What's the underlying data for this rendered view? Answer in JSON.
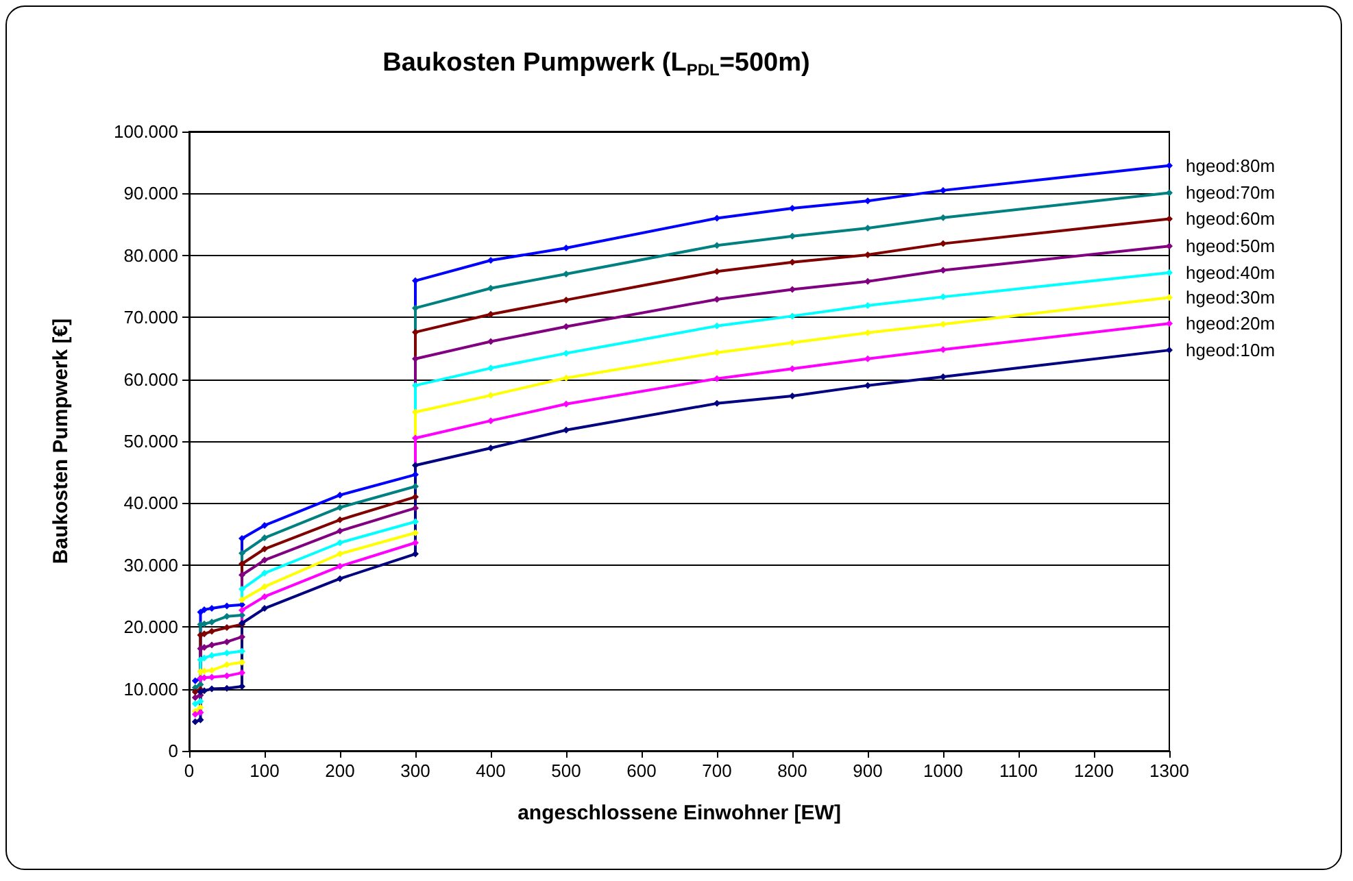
{
  "chart_data": {
    "type": "line",
    "title": "Baukosten Pumpwerk (L$_{PDL}$=500m)",
    "xlabel": "angeschlossene Einwohner [EW]",
    "ylabel": "Baukosten Pumpwerk [€]",
    "x": [
      8,
      15,
      15,
      20,
      30,
      50,
      70,
      70,
      100,
      200,
      300,
      300,
      400,
      500,
      700,
      800,
      900,
      1000,
      1300
    ],
    "series": [
      {
        "name": "hgeod:80m",
        "color": "#0000ff",
        "values": [
          11300,
          11700,
          22400,
          22800,
          23000,
          23400,
          23600,
          34300,
          36400,
          41300,
          44600,
          75900,
          79200,
          81200,
          86000,
          87600,
          88800,
          90500,
          94500
        ]
      },
      {
        "name": "hgeod:70m",
        "color": "#008080",
        "values": [
          10200,
          10700,
          20400,
          20500,
          20800,
          21700,
          21900,
          31900,
          34400,
          39300,
          42700,
          71500,
          74700,
          77000,
          81600,
          83100,
          84400,
          86100,
          90100
        ]
      },
      {
        "name": "hgeod:60m",
        "color": "#800000",
        "values": [
          9500,
          9900,
          18700,
          18900,
          19300,
          19900,
          20400,
          30200,
          32600,
          37300,
          41000,
          67600,
          70500,
          72800,
          77400,
          78900,
          80100,
          81900,
          85900
        ]
      },
      {
        "name": "hgeod:50m",
        "color": "#800080",
        "values": [
          8600,
          9000,
          16500,
          16700,
          17100,
          17600,
          18400,
          28400,
          30800,
          35500,
          39200,
          63300,
          66100,
          68500,
          72900,
          74500,
          75800,
          77600,
          81500
        ]
      },
      {
        "name": "hgeod:40m",
        "color": "#00ffff",
        "values": [
          7600,
          8000,
          14700,
          15000,
          15400,
          15800,
          16100,
          26100,
          28700,
          33600,
          37000,
          59000,
          61800,
          64200,
          68600,
          70200,
          71900,
          73300,
          77200
        ]
      },
      {
        "name": "hgeod:30m",
        "color": "#ffff00",
        "values": [
          6400,
          7000,
          12800,
          12900,
          13000,
          13900,
          14300,
          24400,
          26500,
          31800,
          35200,
          54700,
          57400,
          60200,
          64300,
          65900,
          67500,
          68900,
          73200
        ]
      },
      {
        "name": "hgeod:20m",
        "color": "#ff00ff",
        "values": [
          5900,
          6200,
          11700,
          11800,
          11900,
          12100,
          12600,
          22700,
          24900,
          29800,
          33600,
          50500,
          53300,
          56000,
          60100,
          61700,
          63300,
          64800,
          69000
        ]
      },
      {
        "name": "hgeod:10m",
        "color": "#000080",
        "values": [
          4700,
          5000,
          9500,
          9700,
          10000,
          10100,
          10400,
          20600,
          23000,
          27800,
          31800,
          46100,
          48900,
          51800,
          56100,
          57300,
          59000,
          60400,
          64700
        ]
      }
    ],
    "xlim": [
      0,
      1300
    ],
    "xticks": [
      0,
      100,
      200,
      300,
      400,
      500,
      600,
      700,
      800,
      900,
      1000,
      1100,
      1200,
      1300
    ],
    "ylim": [
      0,
      100000
    ],
    "yticks": [
      0,
      {
        "value": 10000,
        "label": "10.000"
      },
      {
        "value": 20000,
        "label": "20.000"
      },
      {
        "value": 30000,
        "label": "30.000"
      },
      {
        "value": 40000,
        "label": "40.000"
      },
      {
        "value": 50000,
        "label": "50.000"
      },
      {
        "value": 60000,
        "label": "60.000"
      },
      {
        "value": 70000,
        "label": "70.000"
      },
      {
        "value": 80000,
        "label": "80.000"
      },
      {
        "value": 90000,
        "label": "90.000"
      },
      {
        "value": 100000,
        "label": "100.000"
      }
    ],
    "grid": "y",
    "legend": false,
    "marker": "diamond",
    "line_style": "solid"
  }
}
